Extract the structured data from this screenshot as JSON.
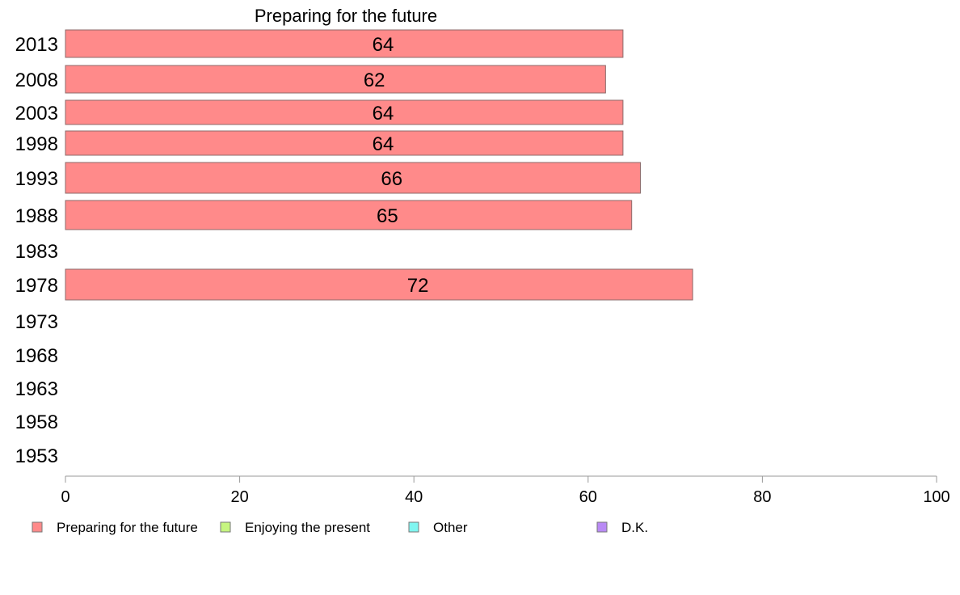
{
  "chart_data": {
    "type": "bar",
    "orientation": "horizontal",
    "title": "Preparing for the future",
    "xlabel": "",
    "ylabel": "",
    "xlim": [
      0,
      100
    ],
    "x_ticks": [
      0,
      20,
      40,
      60,
      80,
      100
    ],
    "categories": [
      "2013",
      "2008",
      "2003",
      "1998",
      "1993",
      "1988",
      "1983",
      "1978",
      "1973",
      "1968",
      "1963",
      "1958",
      "1953"
    ],
    "series": [
      {
        "name": "Preparing for the future",
        "color": "#ff8a8a",
        "values": [
          64,
          62,
          64,
          64,
          66,
          65,
          null,
          72,
          null,
          null,
          null,
          null,
          null
        ]
      }
    ],
    "data_labels": [
      "64",
      "62",
      "64",
      "64",
      "66",
      "65",
      "",
      "72",
      "",
      "",
      "",
      "",
      ""
    ],
    "legend": {
      "placement": "bottom",
      "items": [
        {
          "label": "Preparing for the future",
          "color": "#ff8a8a"
        },
        {
          "label": "Enjoying the present",
          "color": "#c6f580"
        },
        {
          "label": "Other",
          "color": "#80f5f0"
        },
        {
          "label": "D.K.",
          "color": "#b98af5"
        }
      ]
    },
    "grid": false
  }
}
